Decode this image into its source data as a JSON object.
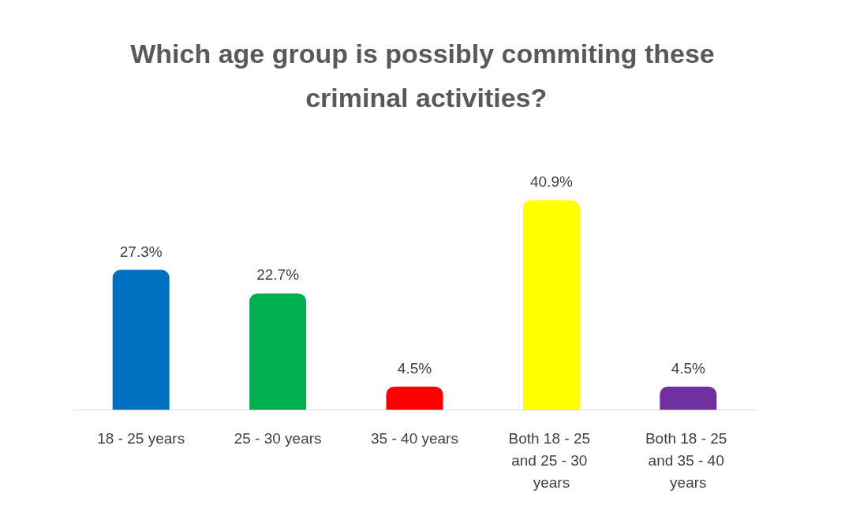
{
  "chart_data": {
    "type": "bar",
    "title": "Which age group is possibly commiting these criminal activities?",
    "categories": [
      "18 - 25 years",
      "25 - 30 years",
      "35 - 40 years",
      "Both 18 - 25 and 25 - 30 years",
      "Both 18 - 25 and 35 - 40 years"
    ],
    "values": [
      27.3,
      22.7,
      4.5,
      40.9,
      4.5
    ],
    "colors": [
      "#0070c0",
      "#00b050",
      "#ff0000",
      "#ffff00",
      "#7030a0"
    ],
    "value_labels": [
      "27.3%",
      "22.7%",
      "4.5%",
      "40.9%",
      "4.5%"
    ]
  }
}
